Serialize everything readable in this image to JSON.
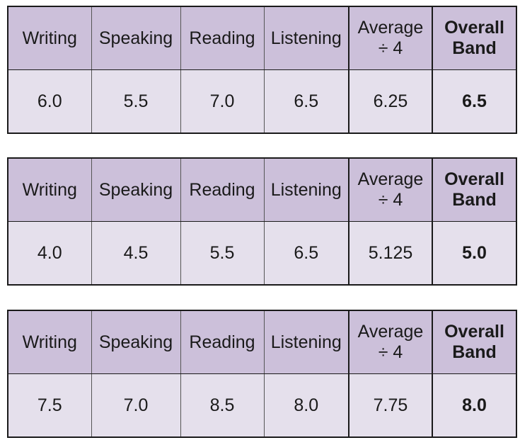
{
  "headers": {
    "writing": "Writing",
    "speaking": "Speaking",
    "reading": "Reading",
    "listening": "Listening",
    "average_line1": "Average",
    "average_line2": "÷ 4",
    "overall_line1": "Overall",
    "overall_line2": "Band"
  },
  "tables": [
    {
      "writing": "6.0",
      "speaking": "5.5",
      "reading": "7.0",
      "listening": "6.5",
      "average": "6.25",
      "overall": "6.5"
    },
    {
      "writing": "4.0",
      "speaking": "4.5",
      "reading": "5.5",
      "listening": "6.5",
      "average": "5.125",
      "overall": "5.0"
    },
    {
      "writing": "7.5",
      "speaking": "7.0",
      "reading": "8.5",
      "listening": "8.0",
      "average": "7.75",
      "overall": "8.0"
    }
  ],
  "colors": {
    "header_fill": "#ccc0da",
    "value_fill": "#e5e0ec",
    "border": "#1a1a1a"
  }
}
